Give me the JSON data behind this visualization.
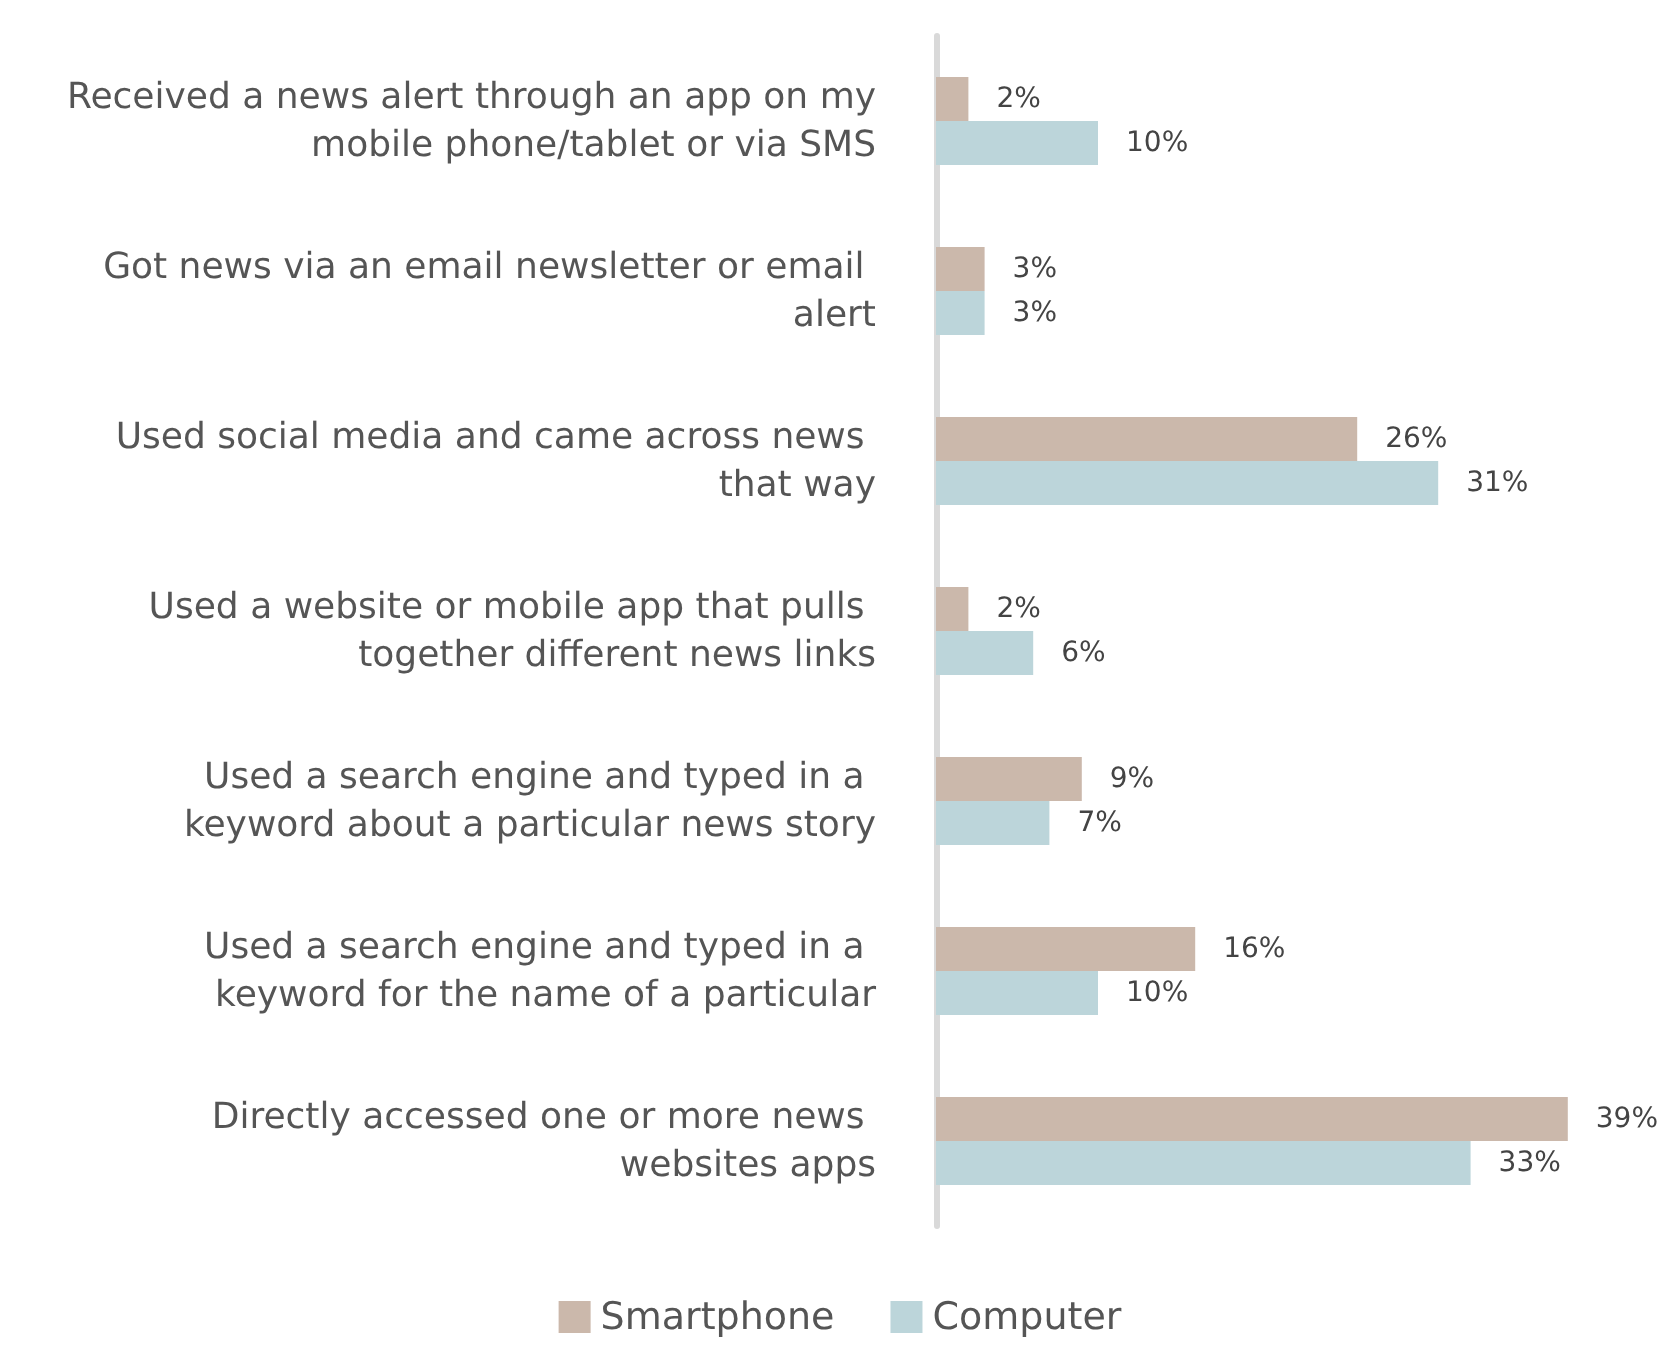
{
  "chart_data": {
    "type": "bar",
    "orientation": "horizontal",
    "categories": [
      "Received a news alert through an app on my mobile phone/tablet or via SMS",
      "Got news via an email newsletter or email alert",
      "Used social media and came across news that way",
      "Used a website or mobile app that pulls together different news links",
      "Used a search engine and typed in a keyword about a particular news story",
      "Used a search engine and typed in a keyword for the name of a particular",
      "Directly accessed one or more news websites apps"
    ],
    "series": [
      {
        "name": "Smartphone",
        "color": "#cbb8ab",
        "values": [
          2,
          3,
          26,
          2,
          9,
          16,
          39
        ],
        "value_labels": [
          "2%",
          "3%",
          "26%",
          "2%",
          "9%",
          "16%",
          "39%"
        ]
      },
      {
        "name": "Computer",
        "color": "#bcd5da",
        "values": [
          10,
          3,
          31,
          6,
          7,
          10,
          33
        ],
        "value_labels": [
          "10%",
          "3%",
          "31%",
          "6%",
          "7%",
          "10%",
          "33%"
        ]
      }
    ],
    "legend": "bottom",
    "grid": false
  }
}
